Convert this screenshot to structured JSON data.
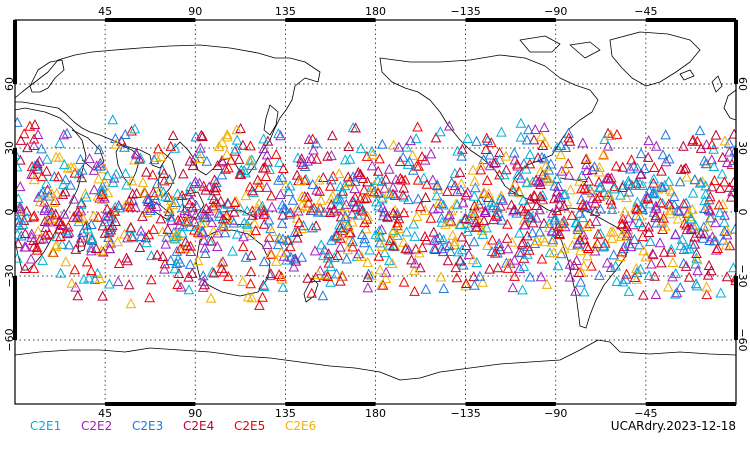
{
  "map": {
    "type": "scatter",
    "projection": "cylindrical-equidistant",
    "lon_range": [
      0,
      360
    ],
    "lat_range": [
      -90,
      90
    ],
    "grid": true,
    "grid_style": "dotted",
    "marker": "triangle-open",
    "lon_ticks": [
      {
        "value": 45,
        "label": "45"
      },
      {
        "value": 90,
        "label": "90"
      },
      {
        "value": 135,
        "label": "135"
      },
      {
        "value": 180,
        "label": "180"
      },
      {
        "value": 225,
        "label": "−135"
      },
      {
        "value": 270,
        "label": "−90"
      },
      {
        "value": 315,
        "label": "−45"
      }
    ],
    "lat_ticks": [
      {
        "value": 60,
        "label": "60"
      },
      {
        "value": 30,
        "label": "30"
      },
      {
        "value": 0,
        "label": "0"
      },
      {
        "value": -30,
        "label": "−30"
      },
      {
        "value": -60,
        "label": "−60"
      }
    ],
    "observation_lat_range": [
      -45,
      45
    ],
    "approx_points_per_series": 260,
    "series": [
      {
        "name": "C2E1",
        "color": "#00b0d8"
      },
      {
        "name": "C2E2",
        "color": "#a020c0"
      },
      {
        "name": "C2E3",
        "color": "#1e78e0"
      },
      {
        "name": "C2E4",
        "color": "#c00030"
      },
      {
        "name": "C2E5",
        "color": "#f00000"
      },
      {
        "name": "C2E6",
        "color": "#f0b000"
      }
    ]
  },
  "caption": "UCARdry.2023-12-18"
}
